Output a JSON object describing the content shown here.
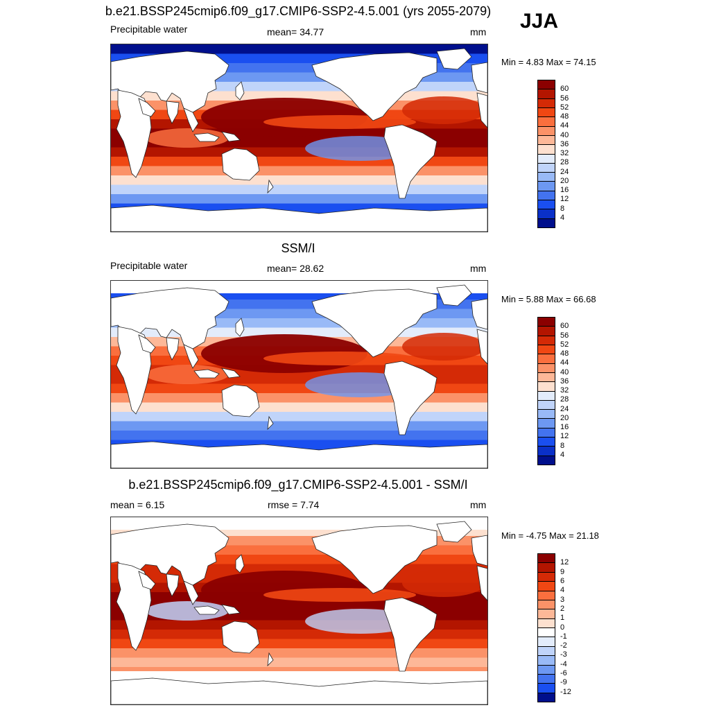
{
  "season": "JJA",
  "panels": [
    {
      "title": "b.e21.BSSP245cmip6.f09_g17.CMIP6-SSP2-4.5.001 (yrs 2055-2079)",
      "left": "Precipitable water",
      "center": "mean=  34.77",
      "units": "mm",
      "range": "Min =   4.83 Max =  74.15",
      "levels": [
        "60",
        "56",
        "52",
        "48",
        "44",
        "40",
        "36",
        "32",
        "28",
        "24",
        "20",
        "16",
        "12",
        "8",
        "4"
      ],
      "colors": [
        "#8b0000",
        "#b31500",
        "#d42a06",
        "#f04713",
        "#fa6f3e",
        "#fb9268",
        "#fdb898",
        "#fde0cf",
        "#e3ecfb",
        "#c0d4fa",
        "#99baf7",
        "#6d98f2",
        "#4373ef",
        "#1a4ff0",
        "#0a30c8",
        "#000f8c"
      ],
      "kind": "model"
    },
    {
      "title": "SSM/I",
      "left": "Precipitable water",
      "center": "mean=  28.62",
      "units": "mm",
      "range": "Min =   5.88 Max =  66.68",
      "levels": [
        "60",
        "56",
        "52",
        "48",
        "44",
        "40",
        "36",
        "32",
        "28",
        "24",
        "20",
        "16",
        "12",
        "8",
        "4"
      ],
      "colors": [
        "#8b0000",
        "#b31500",
        "#d42a06",
        "#f04713",
        "#fa6f3e",
        "#fb9268",
        "#fdb898",
        "#fde0cf",
        "#e3ecfb",
        "#c0d4fa",
        "#99baf7",
        "#6d98f2",
        "#4373ef",
        "#1a4ff0",
        "#0a30c8",
        "#000f8c"
      ],
      "kind": "obs"
    },
    {
      "title": "b.e21.BSSP245cmip6.f09_g17.CMIP6-SSP2-4.5.001 - SSM/I",
      "left": "mean =   6.15",
      "center": "rmse =   7.74",
      "units": "mm",
      "range": "Min =  -4.75 Max =  21.18",
      "levels": [
        "12",
        "9",
        "6",
        "4",
        "3",
        "2",
        "1",
        "0",
        "-1",
        "-2",
        "-3",
        "-4",
        "-6",
        "-9",
        "-12"
      ],
      "colors": [
        "#8b0000",
        "#b31500",
        "#d42a06",
        "#f04713",
        "#fa6f3e",
        "#fb9268",
        "#fdb898",
        "#fde0cf",
        "#ffffff",
        "#e3ecfb",
        "#c0d4fa",
        "#99baf7",
        "#6d98f2",
        "#4373ef",
        "#1a4ff0",
        "#000f8c"
      ],
      "kind": "diff"
    }
  ]
}
